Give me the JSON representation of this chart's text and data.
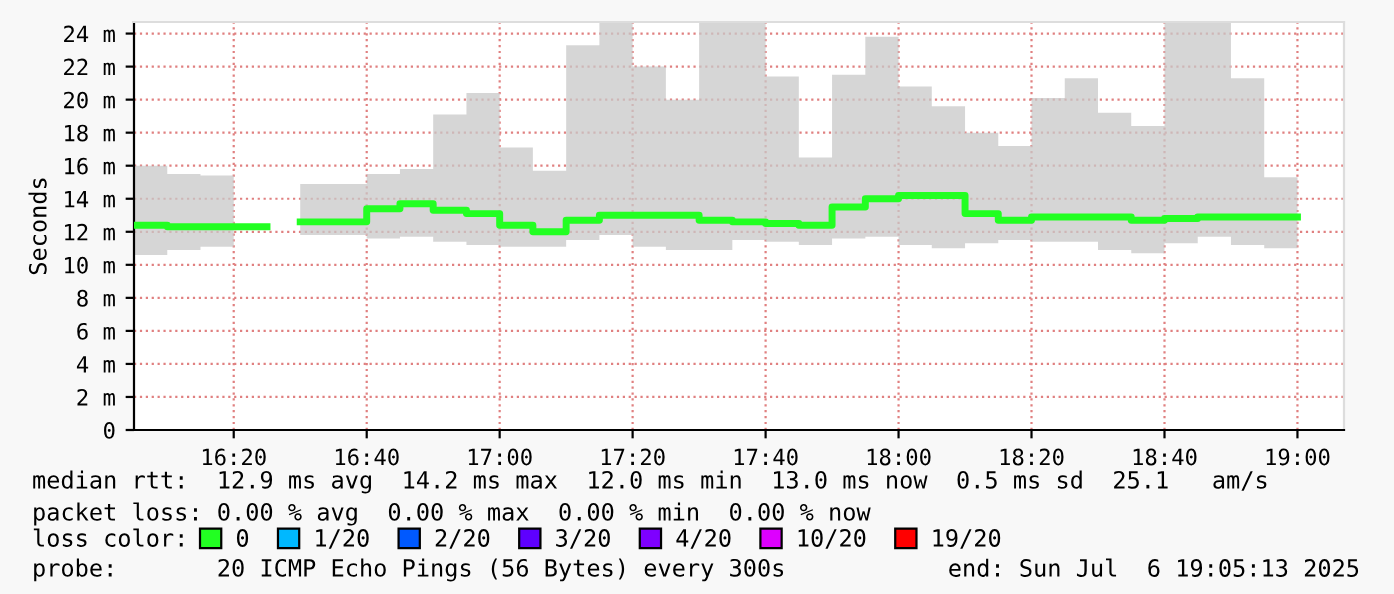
{
  "chart_data": {
    "type": "step",
    "ylabel": "Seconds",
    "legend_title": "loss color:",
    "legend": "bottom",
    "grid": true,
    "marker": "none",
    "line_style": "solid",
    "xlim": [
      16.0833,
      19.1167
    ],
    "xticks": [
      {
        "value": 16.3333,
        "label": "16:20"
      },
      {
        "value": 16.6667,
        "label": "16:40"
      },
      {
        "value": 17.0,
        "label": "17:00"
      },
      {
        "value": 17.3333,
        "label": "17:20"
      },
      {
        "value": 17.6667,
        "label": "17:40"
      },
      {
        "value": 18.0,
        "label": "18:00"
      },
      {
        "value": 18.3333,
        "label": "18:20"
      },
      {
        "value": 18.6667,
        "label": "18:40"
      },
      {
        "value": 19.0,
        "label": "19:00"
      }
    ],
    "ylim": [
      0,
      24.7
    ],
    "yticks": [
      0,
      {
        "value": 2,
        "label": "2 m"
      },
      {
        "value": 4,
        "label": "4 m"
      },
      {
        "value": 6,
        "label": "6 m"
      },
      {
        "value": 8,
        "label": "8 m"
      },
      {
        "value": 10,
        "label": "10 m"
      },
      {
        "value": 12,
        "label": "12 m"
      },
      {
        "value": 14,
        "label": "14 m"
      },
      {
        "value": 16,
        "label": "16 m"
      },
      {
        "value": 18,
        "label": "18 m"
      },
      {
        "value": 20,
        "label": "20 m"
      },
      {
        "value": 22,
        "label": "22 m"
      },
      {
        "value": 24,
        "label": "24 m"
      }
    ],
    "x": [
      16.0833,
      16.1667,
      16.25,
      16.3333,
      16.4167,
      16.5,
      16.5833,
      16.6667,
      16.75,
      16.8333,
      16.9167,
      17.0,
      17.0833,
      17.1667,
      17.25,
      17.3333,
      17.4167,
      17.5,
      17.5833,
      17.6667,
      17.75,
      17.8333,
      17.9167,
      18.0,
      18.0833,
      18.1667,
      18.25,
      18.3333,
      18.4167,
      18.5,
      18.5833,
      18.6667,
      18.75,
      18.8333,
      18.9167,
      19.0
    ],
    "series": [
      {
        "name": "0",
        "color": "#22ff22",
        "values": [
          12.4,
          12.3,
          12.3,
          12.3,
          null,
          12.6,
          12.6,
          13.4,
          13.7,
          13.3,
          13.1,
          12.4,
          12.0,
          12.7,
          13.0,
          13.0,
          13.0,
          12.7,
          12.6,
          12.5,
          12.4,
          13.5,
          14.0,
          14.2,
          14.2,
          13.1,
          12.7,
          12.9,
          12.9,
          12.9,
          12.7,
          12.8,
          12.9,
          12.9,
          12.9,
          12.9
        ],
        "lower": [
          10.6,
          10.9,
          11.1,
          11.1,
          null,
          11.8,
          11.8,
          11.6,
          11.7,
          11.4,
          11.2,
          11.1,
          11.1,
          11.5,
          11.8,
          11.1,
          10.9,
          10.9,
          11.5,
          11.4,
          11.2,
          11.6,
          11.7,
          11.2,
          11.0,
          11.3,
          11.5,
          11.4,
          11.4,
          10.9,
          10.7,
          11.3,
          11.7,
          11.2,
          11.0,
          11.0
        ],
        "upper": [
          16.0,
          15.5,
          15.4,
          15.4,
          null,
          14.9,
          14.9,
          15.5,
          15.8,
          19.1,
          20.4,
          17.1,
          15.7,
          23.3,
          24.7,
          22.0,
          20.0,
          24.7,
          24.7,
          21.4,
          16.5,
          21.5,
          23.8,
          20.8,
          19.6,
          18.0,
          17.2,
          20.1,
          21.3,
          19.2,
          18.4,
          24.7,
          24.7,
          21.3,
          15.3,
          15.3
        ]
      },
      {
        "name": "1/20",
        "color": "#00b8ff",
        "values": [
          null,
          null,
          null,
          null,
          null,
          null,
          null,
          null,
          null,
          null,
          null,
          null,
          null,
          null,
          null,
          null,
          null,
          null,
          null,
          null,
          null,
          null,
          null,
          null,
          null,
          null,
          null,
          null,
          null,
          null,
          null,
          null,
          null,
          null,
          null,
          null
        ]
      },
      {
        "name": "2/20",
        "color": "#0059ff",
        "values": [
          null,
          null,
          null,
          null,
          null,
          null,
          null,
          null,
          null,
          null,
          null,
          null,
          null,
          null,
          null,
          null,
          null,
          null,
          null,
          null,
          null,
          null,
          null,
          null,
          null,
          null,
          null,
          null,
          null,
          null,
          null,
          null,
          null,
          null,
          null,
          null
        ]
      },
      {
        "name": "3/20",
        "color": "#5e00ff",
        "values": [
          null,
          null,
          null,
          null,
          null,
          null,
          null,
          null,
          null,
          null,
          null,
          null,
          null,
          null,
          null,
          null,
          null,
          null,
          null,
          null,
          null,
          null,
          null,
          null,
          null,
          null,
          null,
          null,
          null,
          null,
          null,
          null,
          null,
          null,
          null,
          null
        ]
      },
      {
        "name": "4/20",
        "color": "#7e00ff",
        "values": [
          null,
          null,
          null,
          null,
          null,
          null,
          null,
          null,
          null,
          null,
          null,
          null,
          null,
          null,
          null,
          null,
          null,
          null,
          null,
          null,
          null,
          null,
          null,
          null,
          null,
          null,
          null,
          null,
          null,
          null,
          null,
          null,
          null,
          null,
          null,
          null
        ]
      },
      {
        "name": "10/20",
        "color": "#dd00ff",
        "values": [
          null,
          null,
          null,
          null,
          null,
          null,
          null,
          null,
          null,
          null,
          null,
          null,
          null,
          null,
          null,
          null,
          null,
          null,
          null,
          null,
          null,
          null,
          null,
          null,
          null,
          null,
          null,
          null,
          null,
          null,
          null,
          null,
          null,
          null,
          null,
          null
        ]
      },
      {
        "name": "19/20",
        "color": "#ff0000",
        "values": [
          null,
          null,
          null,
          null,
          null,
          null,
          null,
          null,
          null,
          null,
          null,
          null,
          null,
          null,
          null,
          null,
          null,
          null,
          null,
          null,
          null,
          null,
          null,
          null,
          null,
          null,
          null,
          null,
          null,
          null,
          null,
          null,
          null,
          null,
          null,
          null
        ]
      }
    ],
    "annotations": [
      "median rtt:  12.9 ms avg  14.2 ms max  12.0 ms min  13.0 ms now  0.5 ms sd  25.1   am/s",
      "packet loss: 0.00 % avg  0.00 % max  0.00 % min  0.00 % now",
      "probe:       20 ICMP Echo Pings (56 Bytes) every 300s",
      "end: Sun Jul  6 19:05:13 2025"
    ]
  }
}
